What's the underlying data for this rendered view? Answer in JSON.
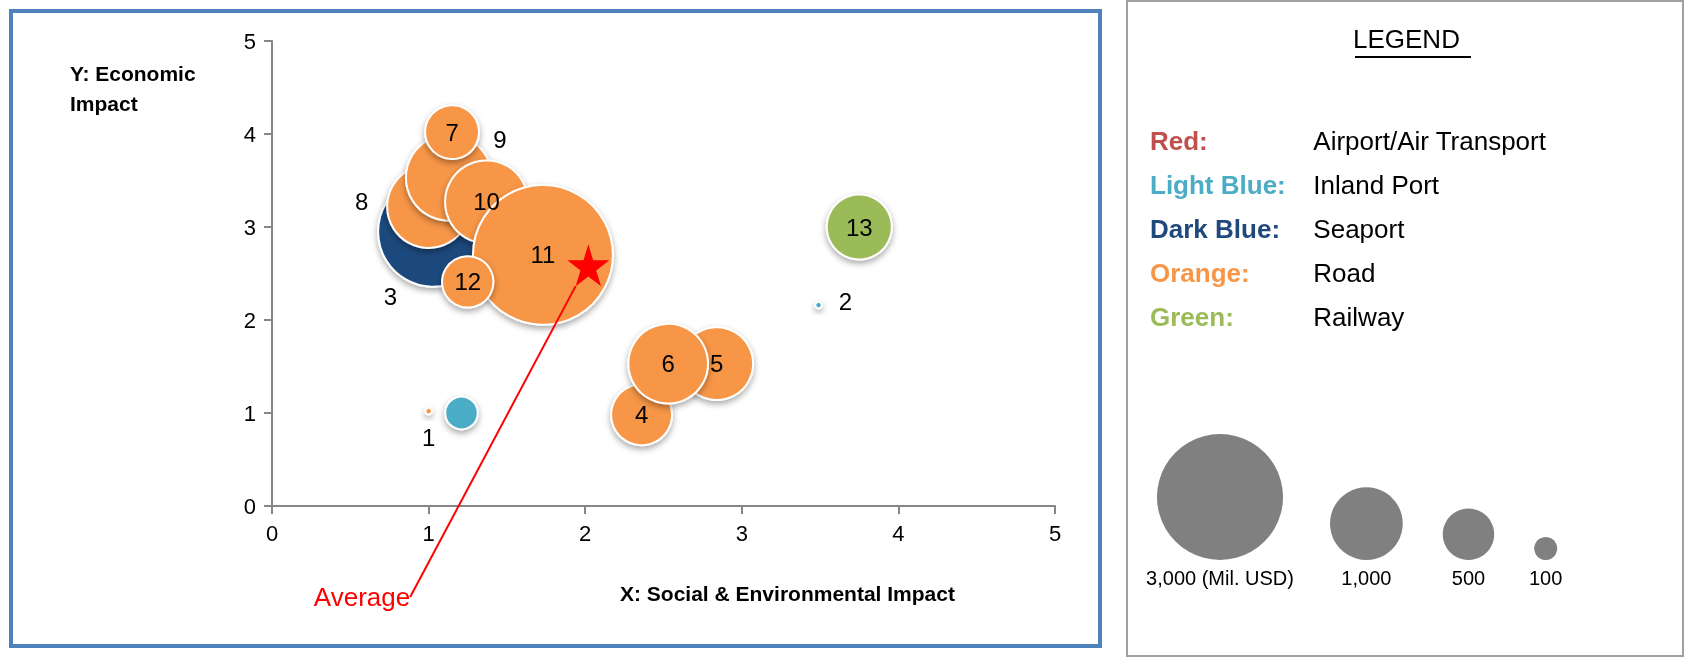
{
  "chart_data": {
    "type": "bubble",
    "xlabel": "X: Social & Environmental Impact",
    "ylabel": "Y: Economic Impact",
    "legend_title": "LEGEND",
    "xlim": [
      0,
      5
    ],
    "ylim": [
      0,
      5
    ],
    "xticks": [
      0,
      1,
      2,
      3,
      4,
      5
    ],
    "yticks": [
      0,
      1,
      2,
      3,
      4,
      5
    ],
    "legend": "right",
    "size_legend": [
      {
        "value": 3000,
        "label": "3,000 (Mil. USD)"
      },
      {
        "value": 1000,
        "label": "1,000"
      },
      {
        "value": 500,
        "label": "500"
      },
      {
        "value": 100,
        "label": "100"
      }
    ],
    "series": [
      {
        "name": "Red: Airport/Air Transport",
        "color": "#c0504d"
      },
      {
        "name": "Light Blue: Inland Port",
        "color": "#4bacc6",
        "x": [
          1.21,
          3.49
        ],
        "values": [
          1.0,
          2.16
        ],
        "sizes": [
          200,
          8
        ]
      },
      {
        "name": "Dark Blue: Seaport",
        "color": "#1f497d",
        "x": [
          1.03
        ],
        "values": [
          2.95
        ],
        "sizes": [
          2300
        ]
      },
      {
        "name": "Orange: Road",
        "color": "#f79646",
        "x": [
          1.0,
          2.36,
          2.84,
          2.53,
          1.0,
          1.13,
          1.15,
          1.37,
          1.73,
          1.25
        ],
        "values": [
          1.02,
          0.98,
          1.53,
          1.53,
          3.22,
          3.53,
          4.02,
          3.27,
          2.7,
          2.41
        ],
        "sizes": [
          8,
          700,
          1000,
          1200,
          1300,
          1400,
          550,
          1300,
          3700,
          500
        ]
      },
      {
        "name": "Green: Railway",
        "color": "#9bbb59",
        "x": [
          3.75
        ],
        "values": [
          3.0
        ],
        "sizes": [
          800
        ]
      },
      {
        "name": "Average",
        "type": "scatter",
        "marker": "star",
        "color": "#ff0000",
        "x": [
          2.02
        ],
        "values": [
          2.59
        ]
      }
    ],
    "annotations": [
      {
        "text": "1",
        "x": 1.0,
        "y": 1.02
      },
      {
        "text": "2",
        "x": 3.49,
        "y": 2.16
      },
      {
        "text": "3",
        "x": 1.03,
        "y": 2.95
      },
      {
        "text": "4",
        "x": 2.36,
        "y": 0.98
      },
      {
        "text": "5",
        "x": 2.84,
        "y": 1.53
      },
      {
        "text": "6",
        "x": 2.53,
        "y": 1.53
      },
      {
        "text": "7",
        "x": 1.15,
        "y": 4.02
      },
      {
        "text": "8",
        "x": 1.0,
        "y": 3.22
      },
      {
        "text": "9",
        "x": 1.13,
        "y": 3.53
      },
      {
        "text": "10",
        "x": 1.37,
        "y": 3.27
      },
      {
        "text": "11",
        "x": 1.73,
        "y": 2.7
      },
      {
        "text": "12",
        "x": 1.25,
        "y": 2.41
      },
      {
        "text": "13",
        "x": 3.75,
        "y": 3.0
      }
    ]
  }
}
